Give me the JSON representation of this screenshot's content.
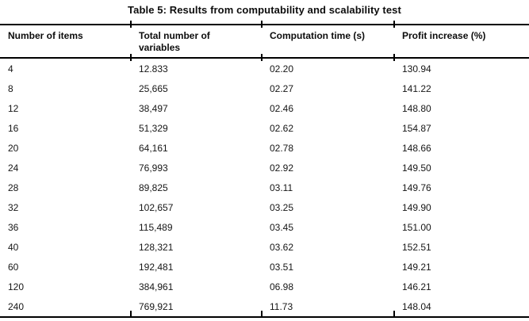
{
  "table": {
    "title": "Table 5: Results from computability and scalability test",
    "columns": [
      "Number of items",
      "Total number of variables",
      "Computation time (s)",
      "Profit increase (%)"
    ],
    "rows": [
      [
        "4",
        "12.833",
        "02.20",
        "130.94"
      ],
      [
        "8",
        "25,665",
        "02.27",
        "141.22"
      ],
      [
        "12",
        "38,497",
        "02.46",
        "148.80"
      ],
      [
        "16",
        "51,329",
        "02.62",
        "154.87"
      ],
      [
        "20",
        "64,161",
        "02.78",
        "148.66"
      ],
      [
        "24",
        "76,993",
        "02.92",
        "149.50"
      ],
      [
        "28",
        "89,825",
        "03.11",
        "149.76"
      ],
      [
        "32",
        "102,657",
        "03.25",
        "149.90"
      ],
      [
        "36",
        "115,489",
        "03.45",
        "151.00"
      ],
      [
        "40",
        "128,321",
        "03.62",
        "152.51"
      ],
      [
        "60",
        "192,481",
        "03.51",
        "149.21"
      ],
      [
        "120",
        "384,961",
        "06.98",
        "146.21"
      ],
      [
        "240",
        "769,921",
        "11.73",
        "148.04"
      ]
    ],
    "colors": {
      "text": "#131313",
      "rule": "#000000",
      "background": "#ffffff"
    }
  }
}
